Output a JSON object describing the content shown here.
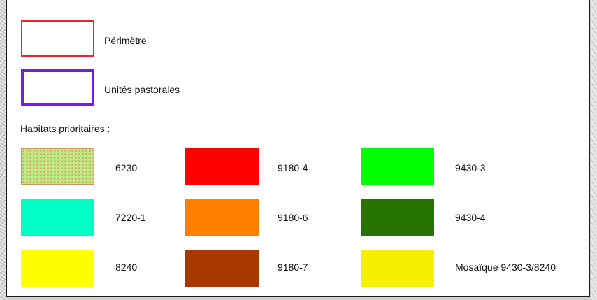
{
  "legend": {
    "perimeter": {
      "label": "Périmètre",
      "stroke_color": "#e8262b"
    },
    "pastoral_units": {
      "label": "Unités pastorales",
      "stroke_color": "#7d17e8"
    },
    "priority_habitats_title": "Habitats prioritaires :",
    "habitats": [
      {
        "code": "6230",
        "fill": "#b9ec85",
        "pattern": "dotted orange"
      },
      {
        "code": "7220-1",
        "fill": "#00ffc4"
      },
      {
        "code": "8240",
        "fill": "#ffff00"
      },
      {
        "code": "9180-4",
        "fill": "#ff0000"
      },
      {
        "code": "9180-6",
        "fill": "#ff8000"
      },
      {
        "code": "9180-7",
        "fill": "#a83800"
      },
      {
        "code": "9430-3",
        "fill": "#00ff00"
      },
      {
        "code": "9430-4",
        "fill": "#267300"
      },
      {
        "code": "Mosaïque 9430-3/8240",
        "fill": "#0c5f08",
        "pattern": "yellow crosses"
      }
    ]
  }
}
